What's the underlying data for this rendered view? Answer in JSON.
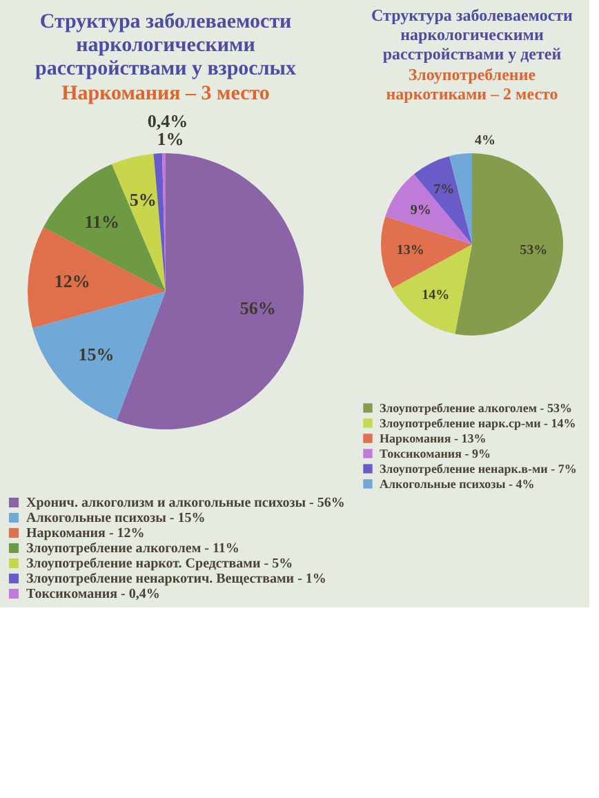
{
  "chart_data": [
    {
      "type": "pie",
      "title": "Структура заболеваемости наркологическими расстройствами у взрослых",
      "subtitle": "Наркомания – 3 место",
      "categories": [
        "Хронич. алкоголизм и алкогольные психозы - 56%",
        "Алкогольные психозы - 15%",
        "Наркомания - 12%",
        "Злоупотребление алкоголем - 11%",
        "Злоупотребление наркот. Средствами - 5%",
        "Злоупотребление ненаркотич. Веществами - 1%",
        "Токсикомания - 0,4%"
      ],
      "values": [
        56,
        15,
        12,
        11,
        5,
        1,
        0.4
      ],
      "colors": [
        "#8a64a6",
        "#70a8d8",
        "#e0704c",
        "#6e9a44",
        "#c8d64c",
        "#6a5cc8",
        "#c07ad8"
      ],
      "value_labels": [
        "56%",
        "15%",
        "12%",
        "11%",
        "5%",
        "1%",
        "0,4%"
      ],
      "legend": "bottom"
    },
    {
      "type": "pie",
      "title": "Структура заболеваемости наркологическими расстройствами у детей",
      "subtitle": "Злоупотребление наркотиками – 2 место",
      "categories": [
        "Злоупотребление алкоголем - 53%",
        "Злоупотребление нарк.ср-ми - 14%",
        "Наркомания - 13%",
        "Токсикомания - 9%",
        "Злоупотребление ненарк.в-ми - 7%",
        "Алкогольные психозы - 4%"
      ],
      "values": [
        53,
        14,
        13,
        9,
        7,
        4
      ],
      "colors": [
        "#849c4c",
        "#c8d850",
        "#e07050",
        "#c07ad8",
        "#6a5cc8",
        "#70a8d8"
      ],
      "value_labels": [
        "53%",
        "14%",
        "13%",
        "9%",
        "7%",
        "4%"
      ],
      "legend": "bottom"
    }
  ]
}
